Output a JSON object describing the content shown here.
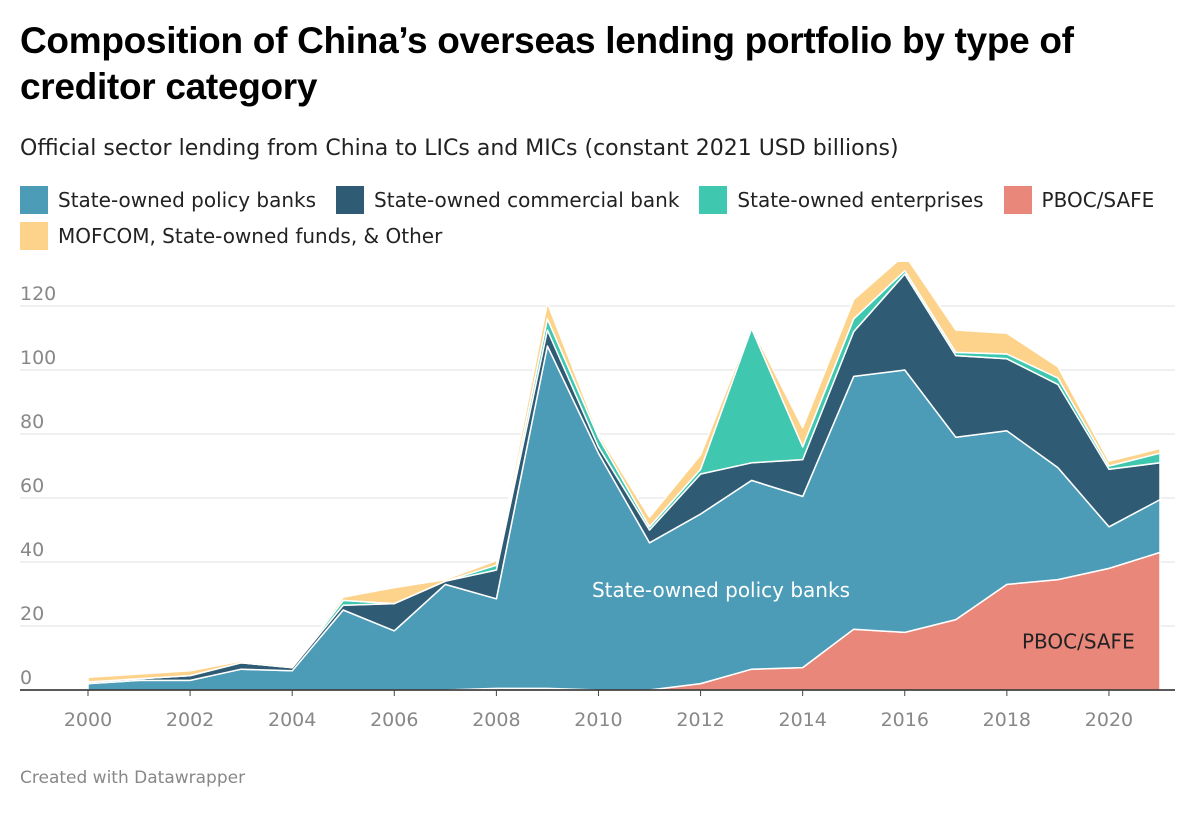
{
  "title": "Composition of China’s overseas lending portfolio by type of creditor category",
  "subtitle": "Official sector lending from China to LICs and MICs (constant 2021 USD billions)",
  "footer": "Created with Datawrapper",
  "chart_data": {
    "type": "area",
    "stacked": true,
    "x": [
      2000,
      2001,
      2002,
      2003,
      2004,
      2005,
      2006,
      2007,
      2008,
      2009,
      2010,
      2011,
      2012,
      2013,
      2014,
      2015,
      2016,
      2017,
      2018,
      2019,
      2020,
      2021
    ],
    "series": [
      {
        "name": "PBOC/SAFE",
        "color": "#e8877a",
        "values": [
          0,
          0,
          0,
          0,
          0,
          0,
          0,
          0,
          0.5,
          0.5,
          0,
          0,
          2,
          6.5,
          7,
          19,
          18,
          22,
          33,
          34.5,
          38,
          43
        ]
      },
      {
        "name": "State-owned policy banks",
        "color": "#4c9cb7",
        "values": [
          2,
          3,
          3,
          6.5,
          6,
          25,
          18.5,
          33,
          28,
          107,
          74,
          46,
          53,
          59,
          53.5,
          79,
          82,
          57,
          48,
          35,
          13,
          16.5
        ]
      },
      {
        "name": "State-owned commercial bank",
        "color": "#2f5c74",
        "values": [
          0.5,
          0.5,
          1.5,
          2,
          1,
          1.5,
          8.5,
          1,
          9,
          5,
          2,
          4,
          12.5,
          5.5,
          11.5,
          14,
          30,
          25.5,
          22.5,
          26,
          18,
          11.5
        ]
      },
      {
        "name": "State-owned enterprises",
        "color": "#3fc7b0",
        "values": [
          0,
          0,
          0,
          0,
          0,
          1.5,
          0,
          0,
          1.5,
          3.5,
          3,
          1,
          1.5,
          42,
          4,
          4,
          1,
          1,
          1.5,
          2,
          1,
          3
        ]
      },
      {
        "name": "MOFCOM, State-owned funds, & Other",
        "color": "#fdd38c",
        "values": [
          1.5,
          1.5,
          1.5,
          0.5,
          0.5,
          1,
          5,
          0.5,
          1.5,
          5,
          1,
          3,
          4.5,
          0.5,
          6,
          6,
          5,
          7,
          6.5,
          3.5,
          1.5,
          1.5
        ]
      }
    ],
    "legend": [
      {
        "name": "State-owned policy banks",
        "color": "#4c9cb7"
      },
      {
        "name": "State-owned commercial bank",
        "color": "#2f5c74"
      },
      {
        "name": "State-owned enterprises",
        "color": "#3fc7b0"
      },
      {
        "name": "PBOC/SAFE",
        "color": "#e8877a"
      },
      {
        "name": "MOFCOM, State-owned funds, & Other",
        "color": "#fdd38c"
      }
    ],
    "ylim": [
      0,
      130
    ],
    "yticks": [
      0,
      20,
      40,
      60,
      80,
      100,
      120
    ],
    "xticks": [
      2000,
      2002,
      2004,
      2006,
      2008,
      2010,
      2012,
      2014,
      2016,
      2018,
      2020
    ],
    "annotations": [
      {
        "text": "State-owned policy banks",
        "x": 2012.4,
        "y": 29,
        "color": "#ffffff"
      },
      {
        "text": "PBOC/SAFE",
        "x": 2019.4,
        "y": 13,
        "color": "#222222"
      }
    ],
    "grid": true,
    "legend_position": "top"
  }
}
